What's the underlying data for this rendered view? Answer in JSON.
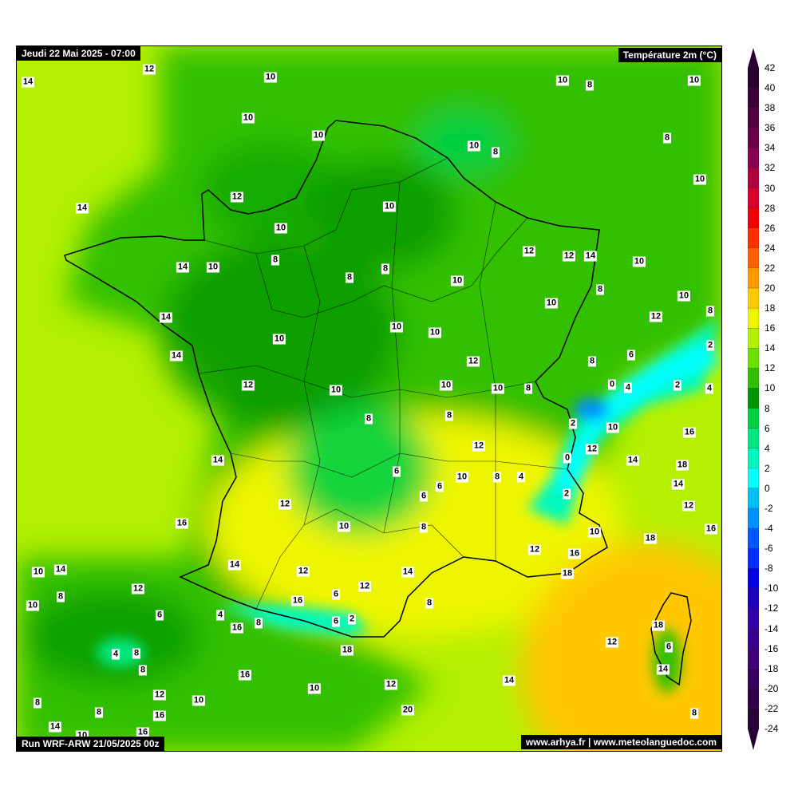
{
  "header": {
    "date_label": "Jeudi 22 Mai 2025 - 07:00",
    "variable_label": "Température 2m (°C)"
  },
  "footer": {
    "run_label": "Run WRF-ARW 21/05/2025 00z",
    "credits": "www.arhya.fr | www.meteolanguedoc.com"
  },
  "colorbar": {
    "ticks": [
      "42",
      "40",
      "38",
      "36",
      "34",
      "32",
      "30",
      "28",
      "26",
      "24",
      "22",
      "20",
      "18",
      "16",
      "14",
      "12",
      "10",
      "8",
      "6",
      "4",
      "2",
      "0",
      "-2",
      "-4",
      "-6",
      "-8",
      "-10",
      "-12",
      "-14",
      "-16",
      "-18",
      "-20",
      "-22",
      "-24"
    ],
    "colors_top_to_bottom": [
      "#2a0030",
      "#3d0038",
      "#52003f",
      "#6a0048",
      "#8a0050",
      "#b00040",
      "#d8002a",
      "#f00000",
      "#ff3000",
      "#ff6000",
      "#ff9800",
      "#ffc800",
      "#eef500",
      "#b4f000",
      "#6ee000",
      "#30c000",
      "#009600",
      "#00d040",
      "#00e880",
      "#00f8c0",
      "#00ffff",
      "#00c0f8",
      "#0090ff",
      "#0058ff",
      "#0030ff",
      "#0000e0",
      "#2000c0",
      "#3000a8",
      "#380090",
      "#400078",
      "#380060",
      "#300048",
      "#280038"
    ]
  },
  "map": {
    "temperature_labels": [
      "14",
      "12",
      "10",
      "10",
      "10",
      "10",
      "8",
      "10",
      "10",
      "8",
      "8",
      "10",
      "12",
      "14",
      "10",
      "10",
      "12",
      "12",
      "14",
      "10",
      "14",
      "10",
      "8",
      "8",
      "8",
      "10",
      "10",
      "8",
      "10",
      "8",
      "14",
      "12",
      "10",
      "10",
      "10",
      "14",
      "2",
      "6",
      "8",
      "12",
      "12",
      "0",
      "4",
      "2",
      "4",
      "10",
      "10",
      "10",
      "8",
      "8",
      "8",
      "2",
      "10",
      "16",
      "12",
      "12",
      "0",
      "14",
      "14",
      "18",
      "6",
      "10",
      "8",
      "4",
      "6",
      "14",
      "6",
      "2",
      "12",
      "12",
      "16",
      "10",
      "8",
      "16",
      "10",
      "18",
      "12",
      "16",
      "14",
      "10",
      "14",
      "12",
      "14",
      "18",
      "12",
      "12",
      "6",
      "8",
      "10",
      "16",
      "8",
      "6",
      "4",
      "6",
      "2",
      "8",
      "16",
      "18",
      "12",
      "6",
      "4",
      "8",
      "8",
      "18",
      "14",
      "16",
      "14",
      "12",
      "10",
      "12",
      "10",
      "8",
      "8",
      "16",
      "20",
      "8",
      "14",
      "10",
      "16"
    ]
  }
}
